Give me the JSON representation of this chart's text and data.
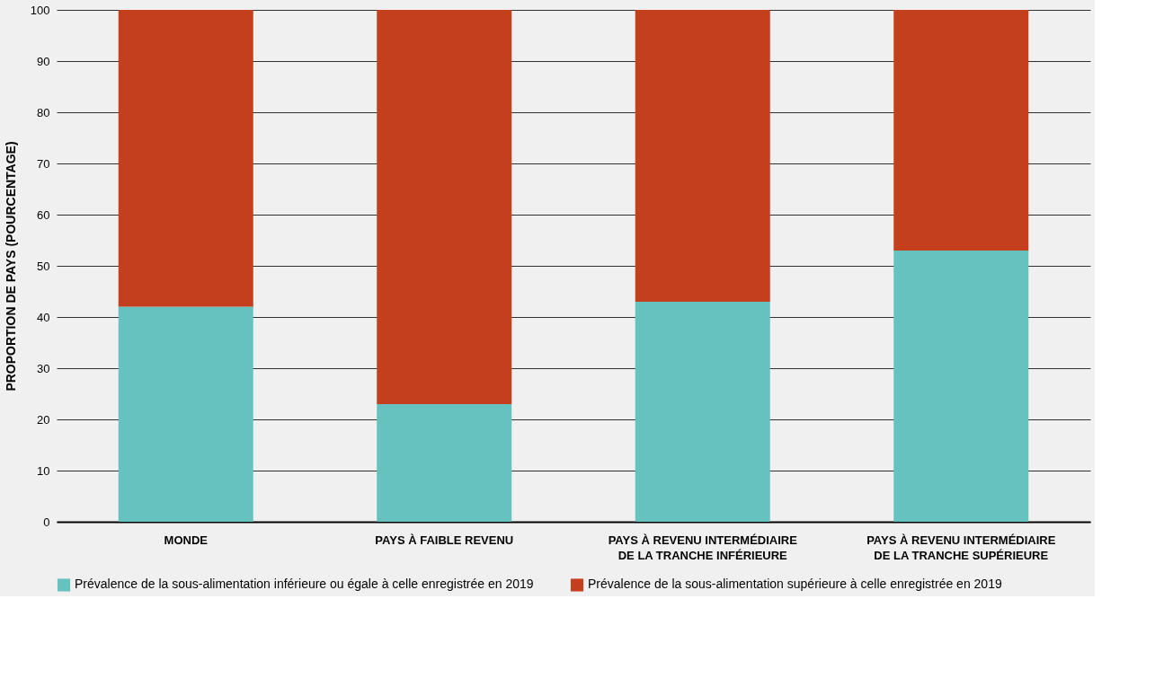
{
  "chart_data": {
    "type": "bar",
    "stacked": true,
    "ylabel": "PROPORTION DE PAYS (POURCENTAGE)",
    "categories": [
      "MONDE",
      "PAYS À FAIBLE REVENU",
      "PAYS À REVENU INTERMÉDIAIRE\nDE LA TRANCHE INFÉRIEURE",
      "PAYS À REVENU INTERMÉDIAIRE\nDE LA TRANCHE SUPÉRIEURE"
    ],
    "series": [
      {
        "name": "Prévalence de la sous-alimentation inférieure ou égale à celle enregistrée en 2019",
        "color": "#66c2bf",
        "values": [
          42,
          23,
          43,
          53
        ]
      },
      {
        "name": "Prévalence de la sous-alimentation supérieure à celle enregistrée en 2019",
        "color": "#c43f1e",
        "values": [
          58,
          77,
          57,
          47
        ]
      }
    ],
    "ylim": [
      0,
      100
    ],
    "yticks": [
      0,
      10,
      20,
      30,
      40,
      50,
      60,
      70,
      80,
      90,
      100
    ],
    "grid": "y",
    "legend": "bottom left"
  }
}
